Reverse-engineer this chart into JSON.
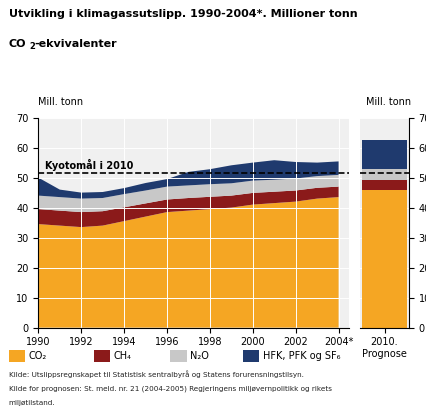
{
  "years": [
    1990,
    1991,
    1992,
    1993,
    1994,
    1995,
    1996,
    1997,
    1998,
    1999,
    2000,
    2001,
    2002,
    2003,
    2004
  ],
  "co2": [
    34.5,
    34.0,
    33.5,
    34.0,
    35.5,
    37.0,
    38.5,
    39.0,
    39.5,
    40.0,
    41.0,
    41.5,
    42.0,
    43.0,
    43.5
  ],
  "ch4": [
    5.0,
    5.0,
    5.0,
    4.8,
    4.6,
    4.4,
    4.2,
    4.2,
    4.1,
    4.0,
    3.9,
    3.8,
    3.7,
    3.6,
    3.5
  ],
  "n2o": [
    4.5,
    4.5,
    4.5,
    4.4,
    4.4,
    4.3,
    4.3,
    4.2,
    4.2,
    4.1,
    4.1,
    4.0,
    4.0,
    3.9,
    3.9
  ],
  "hfk": [
    6.0,
    2.5,
    2.0,
    2.0,
    2.0,
    2.5,
    2.5,
    4.5,
    5.0,
    6.0,
    6.0,
    6.5,
    5.5,
    4.5,
    4.5
  ],
  "prognose_co2": 46.0,
  "prognose_ch4": 3.3,
  "prognose_n2o": 3.7,
  "prognose_hfk": 9.5,
  "kyoto_line": 51.4,
  "color_co2": "#F5A623",
  "color_ch4": "#8B1A1A",
  "color_n2o": "#C8C8C8",
  "color_hfk": "#1F3A6E",
  "color_kyoto": "#000000",
  "ylim": [
    0,
    70
  ],
  "yticks": [
    0,
    10,
    20,
    30,
    40,
    50,
    60,
    70
  ],
  "title_line1": "Utvikling i klimagassutslipp. 1990-2004*. Millioner tonn",
  "title_line2_pre": "CO",
  "title_line2_sub": "2",
  "title_line2_post": "-ekvivalenter",
  "ylabel_left": "Mill. tonn",
  "ylabel_right": "Mill. tonn",
  "kyoto_label": "Kyotomål i 2010",
  "legend_co2": "CO₂",
  "legend_ch4": "CH₄",
  "legend_n2o": "N₂O",
  "legend_hfk": "HFK, PFK og SF₆",
  "source1": "Kilde: Utslippsregnskapet til Statistisk sentralbyrå og Statens forurensningstilsyn.",
  "source2": "Kilde for prognosen: St. meld. nr. 21 (2004-2005) Regjeringens miljøvernpolitikk og rikets",
  "source3": "miljøtilstand."
}
